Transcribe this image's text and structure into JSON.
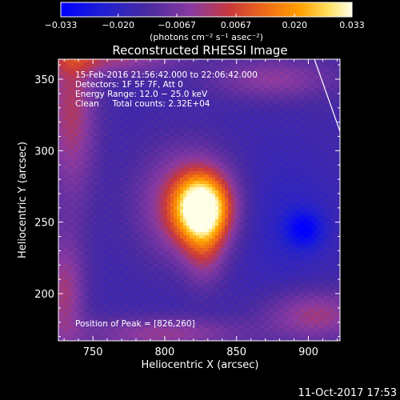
{
  "chart_data": {
    "type": "heatmap",
    "title": "Reconstructed RHESSI Image",
    "xlabel": "Heliocentric X (arcsec)",
    "ylabel": "Heliocentric Y (arcsec)",
    "xlim": [
      726,
      922
    ],
    "ylim": [
      167,
      364
    ],
    "x_ticks": [
      750,
      800,
      850,
      900
    ],
    "y_ticks": [
      200,
      250,
      300,
      350
    ],
    "colorbar": {
      "label": "(photons cm⁻² s⁻¹ asec⁻²)",
      "range": [
        -0.033,
        0.033
      ],
      "tick_values": [
        -0.033,
        -0.02,
        -0.0067,
        0.0067,
        0.02,
        0.033
      ],
      "tick_labels": [
        "−0.033",
        "−0.020",
        "−0.0067",
        "0.0067",
        "0.020",
        "0.033"
      ]
    },
    "info_lines": [
      "15-Feb-2016 21:56:42.000 to 22:06:42.000",
      "Detectors: 1F 5F 7F, Att 0",
      "Energy Range: 12.0 − 25.0 keV",
      "Clean     Total counts: 2.32E+04"
    ],
    "peak_text": "Position of Peak = [826,260]",
    "peak": {
      "x": 826,
      "y": 260,
      "value": 0.033
    },
    "features": [
      {
        "name": "main-source",
        "x": 826,
        "y": 260,
        "value": 0.033
      },
      {
        "name": "negative-dip",
        "x": 897,
        "y": 245,
        "value": -0.03
      }
    ],
    "colors": {
      "background": "#000000",
      "axes": "#ffffff",
      "colormap": [
        "#0000ff",
        "#3c22aa",
        "#5a3a94",
        "#8a44a0",
        "#c84a54",
        "#f07020",
        "#ffb000",
        "#ffff80",
        "#ffffff"
      ]
    },
    "limb_line": true,
    "grid": false
  },
  "footer": {
    "timestamp": "11-Oct-2017 17:53"
  }
}
